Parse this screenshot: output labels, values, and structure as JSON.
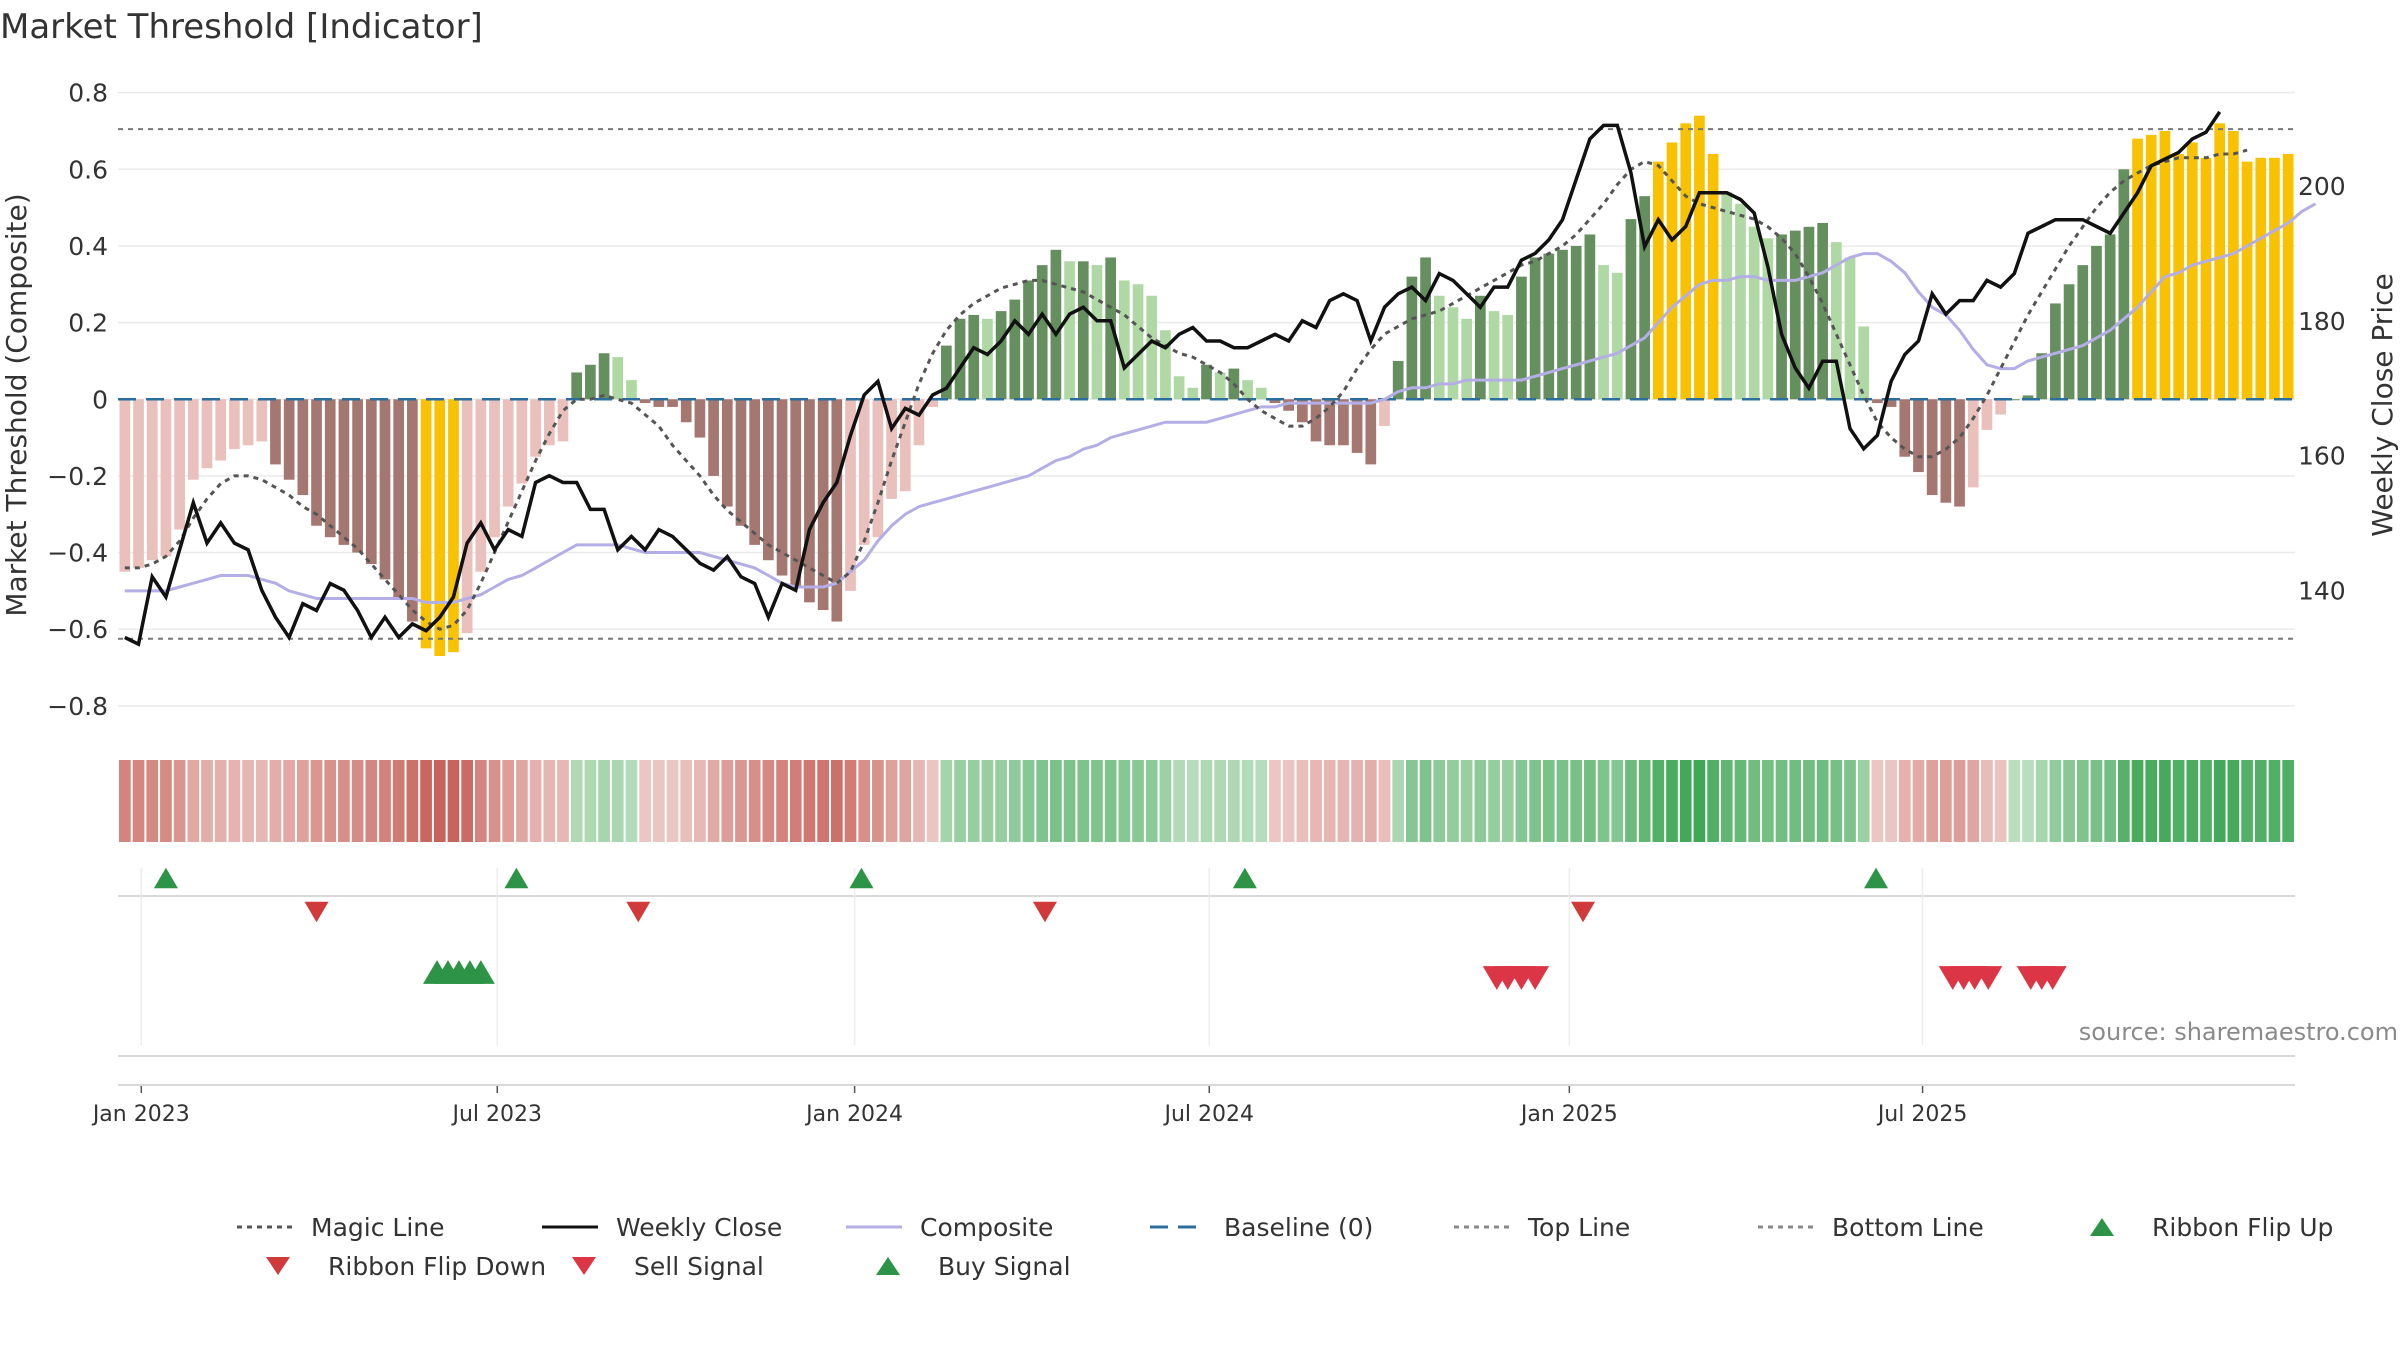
{
  "chart_data": {
    "type": "bar",
    "title": "Market Threshold [Indicator]",
    "ylabel": "Market Threshold (Composite)",
    "y2label": "Weekly Close Price",
    "source": "source: sharemaestro.com",
    "ylim": [
      -0.85,
      0.82
    ],
    "y2lim": [
      120,
      215
    ],
    "yticks": [
      {
        "v": 0.8,
        "label": "0.8"
      },
      {
        "v": 0.6,
        "label": "0.6"
      },
      {
        "v": 0.4,
        "label": "0.4"
      },
      {
        "v": 0.2,
        "label": "0.2"
      },
      {
        "v": 0,
        "label": "0"
      },
      {
        "v": -0.2,
        "label": "−0.2"
      },
      {
        "v": -0.4,
        "label": "−0.4"
      },
      {
        "v": -0.6,
        "label": "−0.6"
      },
      {
        "v": -0.8,
        "label": "−0.8"
      }
    ],
    "y2ticks": [
      {
        "v": 140,
        "label": "140"
      },
      {
        "v": 160,
        "label": "160"
      },
      {
        "v": 180,
        "label": "180"
      },
      {
        "v": 200,
        "label": "200"
      }
    ],
    "xticks": [
      {
        "w": 1.2,
        "label": "Jan 2023"
      },
      {
        "w": 27.2,
        "label": "Jul 2023"
      },
      {
        "w": 53.3,
        "label": "Jan 2024"
      },
      {
        "w": 79.2,
        "label": "Jul 2024"
      },
      {
        "w": 105.5,
        "label": "Jan 2025"
      },
      {
        "w": 131.3,
        "label": "Jul 2025"
      }
    ],
    "top_line": 0.705,
    "bottom_line": -0.625,
    "composite": [
      -0.45,
      -0.44,
      -0.42,
      -0.41,
      -0.34,
      -0.21,
      -0.18,
      -0.16,
      -0.13,
      -0.12,
      -0.11,
      -0.17,
      -0.21,
      -0.25,
      -0.33,
      -0.36,
      -0.38,
      -0.4,
      -0.43,
      -0.47,
      -0.52,
      -0.58,
      -0.65,
      -0.67,
      -0.66,
      -0.61,
      -0.45,
      -0.36,
      -0.28,
      -0.22,
      -0.15,
      -0.12,
      -0.11,
      0.07,
      0.09,
      0.12,
      0.11,
      0.05,
      -0.01,
      -0.02,
      -0.02,
      -0.06,
      -0.1,
      -0.2,
      -0.28,
      -0.33,
      -0.38,
      -0.42,
      -0.46,
      -0.49,
      -0.53,
      -0.55,
      -0.58,
      -0.5,
      -0.38,
      -0.36,
      -0.26,
      -0.24,
      -0.12,
      -0.02,
      0.14,
      0.21,
      0.22,
      0.21,
      0.23,
      0.26,
      0.31,
      0.35,
      0.39,
      0.36,
      0.36,
      0.35,
      0.37,
      0.31,
      0.3,
      0.27,
      0.18,
      0.06,
      0.03,
      0.09,
      0.07,
      0.08,
      0.05,
      0.03,
      -0.01,
      -0.03,
      -0.06,
      -0.11,
      -0.12,
      -0.12,
      -0.14,
      -0.17,
      -0.07,
      0.1,
      0.32,
      0.37,
      0.27,
      0.24,
      0.21,
      0.27,
      0.23,
      0.22,
      0.32,
      0.37,
      0.38,
      0.39,
      0.4,
      0.43,
      0.35,
      0.33,
      0.47,
      0.53,
      0.62,
      0.67,
      0.72,
      0.74,
      0.64,
      0.54,
      0.51,
      0.45,
      0.42,
      0.43,
      0.44,
      0.45,
      0.46,
      0.41,
      0.37,
      0.19,
      -0.01,
      -0.02,
      -0.15,
      -0.19,
      -0.25,
      -0.27,
      -0.28,
      -0.23,
      -0.08,
      -0.04,
      0,
      0.01,
      0.12,
      0.25,
      0.3,
      0.35,
      0.4,
      0.43,
      0.6,
      0.68,
      0.69,
      0.7,
      0.64,
      0.67,
      0.63,
      0.72,
      0.7,
      0.62,
      0.63,
      0.63,
      0.64
    ],
    "composite_smooth": [
      -0.5,
      -0.5,
      -0.5,
      -0.5,
      -0.49,
      -0.48,
      -0.47,
      -0.46,
      -0.46,
      -0.46,
      -0.47,
      -0.48,
      -0.5,
      -0.51,
      -0.52,
      -0.52,
      -0.52,
      -0.52,
      -0.52,
      -0.52,
      -0.52,
      -0.52,
      -0.53,
      -0.53,
      -0.53,
      -0.52,
      -0.51,
      -0.49,
      -0.47,
      -0.46,
      -0.44,
      -0.42,
      -0.4,
      -0.38,
      -0.38,
      -0.38,
      -0.38,
      -0.39,
      -0.4,
      -0.4,
      -0.4,
      -0.4,
      -0.4,
      -0.41,
      -0.42,
      -0.43,
      -0.44,
      -0.46,
      -0.48,
      -0.49,
      -0.49,
      -0.49,
      -0.48,
      -0.45,
      -0.42,
      -0.37,
      -0.33,
      -0.3,
      -0.28,
      -0.27,
      -0.26,
      -0.25,
      -0.24,
      -0.23,
      -0.22,
      -0.21,
      -0.2,
      -0.18,
      -0.16,
      -0.15,
      -0.13,
      -0.12,
      -0.1,
      -0.09,
      -0.08,
      -0.07,
      -0.06,
      -0.06,
      -0.06,
      -0.06,
      -0.05,
      -0.04,
      -0.03,
      -0.02,
      -0.02,
      -0.01,
      -0.01,
      -0.01,
      -0.01,
      -0.01,
      -0.01,
      -0.01,
      0,
      0.02,
      0.03,
      0.03,
      0.04,
      0.04,
      0.05,
      0.05,
      0.05,
      0.05,
      0.05,
      0.06,
      0.07,
      0.08,
      0.09,
      0.1,
      0.11,
      0.12,
      0.14,
      0.16,
      0.2,
      0.24,
      0.27,
      0.3,
      0.31,
      0.31,
      0.32,
      0.32,
      0.31,
      0.31,
      0.31,
      0.32,
      0.33,
      0.35,
      0.37,
      0.38,
      0.38,
      0.36,
      0.33,
      0.28,
      0.24,
      0.22,
      0.18,
      0.13,
      0.09,
      0.08,
      0.08,
      0.1,
      0.11,
      0.12,
      0.13,
      0.14,
      0.16,
      0.18,
      0.21,
      0.24,
      0.28,
      0.32,
      0.33,
      0.35,
      0.36,
      0.37,
      0.38,
      0.4,
      0.42,
      0.44,
      0.46,
      0.49,
      0.51
    ],
    "magic_line": [
      -0.44,
      -0.44,
      -0.43,
      -0.41,
      -0.37,
      -0.31,
      -0.26,
      -0.22,
      -0.2,
      -0.2,
      -0.21,
      -0.23,
      -0.25,
      -0.28,
      -0.3,
      -0.33,
      -0.36,
      -0.39,
      -0.43,
      -0.47,
      -0.51,
      -0.55,
      -0.58,
      -0.6,
      -0.59,
      -0.55,
      -0.48,
      -0.4,
      -0.32,
      -0.24,
      -0.16,
      -0.09,
      -0.03,
      0,
      0,
      0.01,
      0,
      -0.01,
      -0.04,
      -0.07,
      -0.12,
      -0.16,
      -0.2,
      -0.25,
      -0.29,
      -0.32,
      -0.35,
      -0.38,
      -0.4,
      -0.42,
      -0.44,
      -0.46,
      -0.48,
      -0.45,
      -0.37,
      -0.27,
      -0.16,
      -0.06,
      0.04,
      0.12,
      0.18,
      0.22,
      0.25,
      0.27,
      0.29,
      0.3,
      0.31,
      0.31,
      0.3,
      0.29,
      0.28,
      0.26,
      0.24,
      0.22,
      0.19,
      0.16,
      0.14,
      0.12,
      0.11,
      0.09,
      0.07,
      0.04,
      0,
      -0.03,
      -0.05,
      -0.07,
      -0.07,
      -0.05,
      -0.02,
      0.02,
      0.08,
      0.13,
      0.17,
      0.19,
      0.21,
      0.22,
      0.23,
      0.25,
      0.27,
      0.29,
      0.31,
      0.33,
      0.35,
      0.36,
      0.38,
      0.4,
      0.43,
      0.47,
      0.51,
      0.56,
      0.6,
      0.62,
      0.61,
      0.57,
      0.53,
      0.51,
      0.5,
      0.49,
      0.48,
      0.47,
      0.45,
      0.42,
      0.38,
      0.32,
      0.25,
      0.17,
      0.09,
      0.01,
      -0.06,
      -0.1,
      -0.13,
      -0.15,
      -0.15,
      -0.13,
      -0.1,
      -0.05,
      0.01,
      0.08,
      0.15,
      0.22,
      0.28,
      0.34,
      0.4,
      0.45,
      0.5,
      0.54,
      0.57,
      0.59,
      0.61,
      0.62,
      0.63,
      0.63,
      0.63,
      0.64,
      0.64,
      0.65
    ],
    "weekly_close": [
      133,
      132,
      142,
      139,
      146,
      153,
      147,
      150,
      147,
      146,
      140,
      136,
      133,
      138,
      137,
      141,
      140,
      137,
      133,
      136,
      133,
      135,
      134,
      136,
      139,
      147,
      150,
      146,
      149,
      148,
      156,
      157,
      156,
      156,
      152,
      152,
      146,
      148,
      146,
      149,
      148,
      146,
      144,
      143,
      145,
      142,
      141,
      136,
      141,
      140,
      149,
      153,
      156,
      163,
      169,
      171,
      164,
      167,
      166,
      169,
      170,
      173,
      176,
      175,
      177,
      180,
      178,
      181,
      178,
      181,
      182,
      180,
      180,
      173,
      175,
      177,
      176,
      178,
      179,
      177,
      177,
      176,
      176,
      177,
      178,
      177,
      180,
      179,
      183,
      184,
      183,
      177,
      182,
      184,
      185,
      183,
      187,
      186,
      184,
      182,
      185,
      185,
      189,
      190,
      192,
      195,
      201,
      207,
      209,
      209,
      202,
      191,
      195,
      192,
      194,
      199,
      199,
      199,
      198,
      196,
      188,
      178,
      173,
      170,
      174,
      174,
      164,
      161,
      163,
      171,
      175,
      177,
      184,
      181,
      183,
      183,
      186,
      185,
      187,
      193,
      194,
      195,
      195,
      195,
      194,
      193,
      196,
      199,
      203,
      204,
      205,
      207,
      208,
      211
    ]
  },
  "legend": [
    {
      "label": "Magic Line",
      "kind": "dotted-line",
      "color": "#555555"
    },
    {
      "label": "Weekly Close",
      "kind": "line",
      "color": "#111111"
    },
    {
      "label": "Composite",
      "kind": "line",
      "color": "#b4aee6"
    },
    {
      "label": "Baseline (0)",
      "kind": "dashed-line",
      "color": "#2c6f9e"
    },
    {
      "label": "Top Line",
      "kind": "dotted-line",
      "color": "#888888"
    },
    {
      "label": "Bottom Line",
      "kind": "dotted-line",
      "color": "#888888"
    },
    {
      "label": "Ribbon Flip Up",
      "kind": "triangle-up",
      "color": "#2d9447"
    },
    {
      "label": "Ribbon Flip Down",
      "kind": "triangle-down",
      "color": "#d13a3a"
    },
    {
      "label": "Sell Signal",
      "kind": "triangle-down",
      "color": "#dc3545"
    },
    {
      "label": "Buy Signal",
      "kind": "triangle-up",
      "color": "#2d9447"
    }
  ],
  "colors": {
    "pos_dark": "#668f60",
    "pos_light": "#afd8a5",
    "neg_dark": "#a57771",
    "neg_light": "#e9c0bb",
    "extreme": "#f9c200",
    "ribbon_green": "#3ea655",
    "ribbon_red": "#c2574f",
    "flip_up": "#2d9447",
    "flip_down": "#d13a3a",
    "sell": "#dc3545",
    "buy": "#2d9447"
  },
  "signals": {
    "flip_up": [
      3,
      28.6,
      53.8,
      81.8,
      127.9
    ],
    "flip_down": [
      14,
      37.5,
      67.2,
      106.5
    ],
    "buy": [
      22.8,
      23.6,
      24.4,
      25.2,
      26.0
    ],
    "sell": [
      100.2,
      101.0,
      102.0,
      103.0,
      133.5,
      134.3,
      135.1,
      136.1,
      139.2,
      140.0,
      140.8
    ]
  }
}
